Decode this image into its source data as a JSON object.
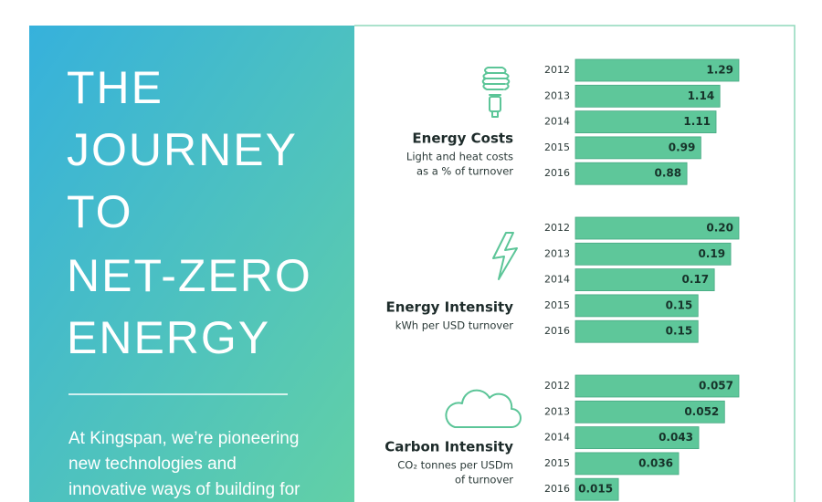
{
  "headline_lines": [
    "THE",
    "JOURNEY",
    "TO",
    "NET-ZERO",
    "ENERGY"
  ],
  "intro_lines": [
    "At Kingspan, we’re pioneering",
    "new technologies and",
    "innovative ways of building for"
  ],
  "chart_data": [
    {
      "type": "bar",
      "orientation": "horizontal",
      "title": "Energy Costs",
      "subtitle_lines": [
        "Light and heat costs",
        "as a % of turnover"
      ],
      "categories": [
        "2012",
        "2013",
        "2014",
        "2015",
        "2016"
      ],
      "values": [
        1.29,
        1.14,
        1.11,
        0.99,
        0.88
      ],
      "color": "#5ec79a",
      "xlim": [
        0,
        1.29
      ]
    },
    {
      "type": "bar",
      "orientation": "horizontal",
      "title": "Energy Intensity",
      "subtitle_lines": [
        "kWh per USD turnover"
      ],
      "categories": [
        "2012",
        "2013",
        "2014",
        "2015",
        "2016"
      ],
      "values": [
        0.2,
        0.19,
        0.17,
        0.15,
        0.15
      ],
      "value_labels": [
        "0.20",
        "0.19",
        "0.17",
        "0.15",
        "0.15"
      ],
      "color": "#5ec79a",
      "xlim": [
        0,
        0.2
      ]
    },
    {
      "type": "bar",
      "orientation": "horizontal",
      "title": "Carbon Intensity",
      "subtitle_lines": [
        "CO₂ tonnes per USDm",
        "of turnover"
      ],
      "categories": [
        "2012",
        "2013",
        "2014",
        "2015",
        "2016"
      ],
      "values": [
        0.057,
        0.052,
        0.043,
        0.036,
        0.015
      ],
      "color": "#5ec79a",
      "xlim": [
        0,
        0.057
      ]
    }
  ]
}
